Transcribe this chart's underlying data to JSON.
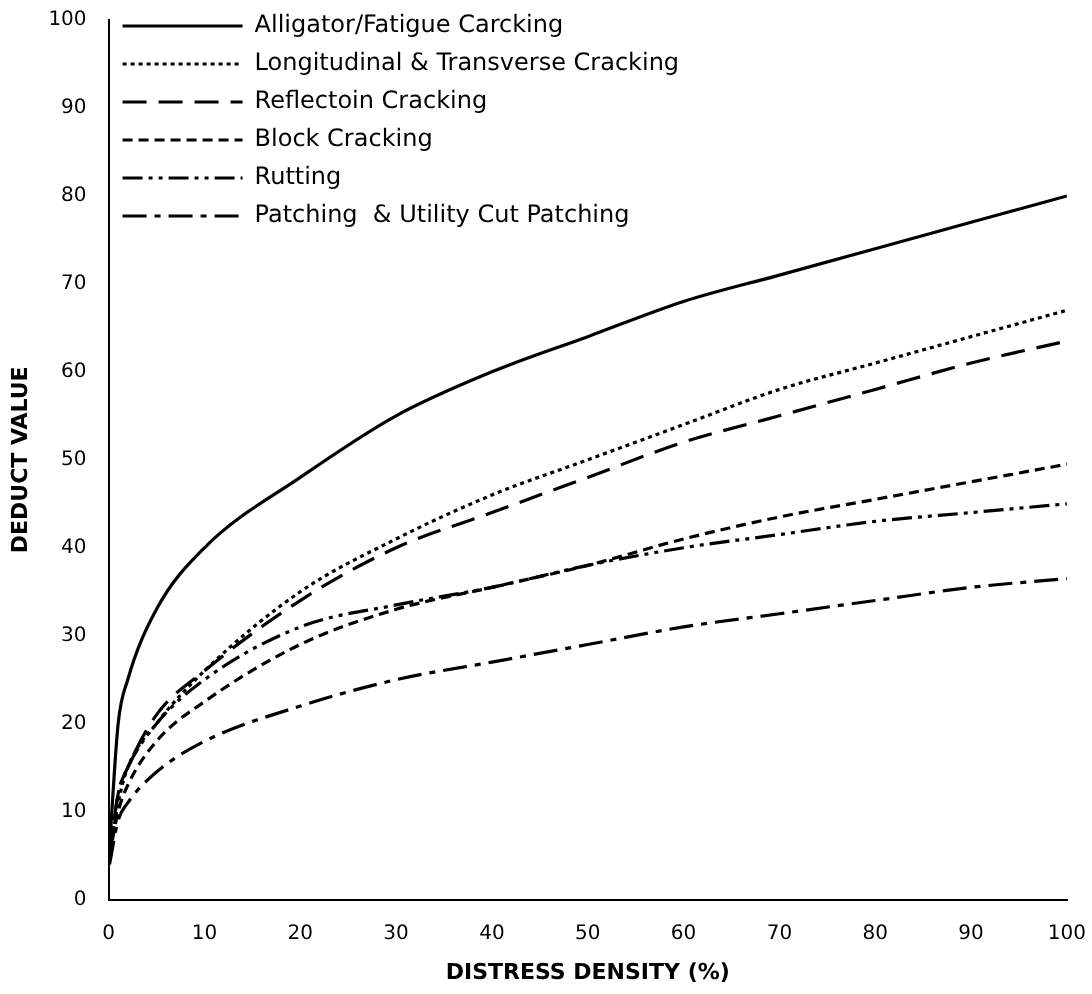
{
  "chart_data": {
    "type": "line",
    "xlabel": "DISTRESS DENSITY (%)",
    "ylabel": "DEDUCT VALUE",
    "x": [
      0.1,
      1,
      2,
      5,
      10,
      20,
      30,
      40,
      50,
      60,
      70,
      80,
      90,
      100
    ],
    "series": [
      {
        "name": "Alligator/Fatigue Carcking",
        "color": "#000000",
        "line_style": "solid",
        "values": [
          6,
          20,
          25,
          33,
          40,
          48,
          55,
          60,
          64,
          68,
          71,
          74,
          77,
          80
        ]
      },
      {
        "name": "Longitudinal & Transverse Cracking",
        "color": "#000000",
        "line_style": "dotted",
        "values": [
          5,
          11,
          15,
          20,
          26,
          35,
          41,
          46,
          50,
          54,
          58,
          61,
          64,
          67
        ]
      },
      {
        "name": "Reflectoin Cracking",
        "color": "#000000",
        "line_style": "dashed",
        "values": [
          5,
          12,
          15,
          21,
          26,
          34,
          40,
          44,
          48,
          52,
          55,
          58,
          61,
          63.5
        ]
      },
      {
        "name": "Block Cracking",
        "color": "#000000",
        "line_style": "dashed",
        "values": [
          5,
          10,
          13,
          18,
          22.5,
          29,
          33,
          35.5,
          38,
          41,
          43.5,
          45.5,
          47.5,
          49.5
        ]
      },
      {
        "name": "Rutting",
        "color": "#000000",
        "line_style": "dashed",
        "values": [
          5,
          12,
          15,
          20,
          25,
          31,
          33.5,
          35.5,
          38,
          40,
          41.5,
          43,
          44,
          45
        ]
      },
      {
        "name": "Patching  & Utility Cut Patching",
        "color": "#000000",
        "line_style": "dashed",
        "values": [
          4,
          9,
          11,
          14.5,
          18,
          22,
          25,
          27,
          29,
          31,
          32.5,
          34,
          35.5,
          36.5
        ]
      }
    ],
    "xlim": [
      0,
      100
    ],
    "xticks": [
      0,
      10,
      20,
      30,
      40,
      50,
      60,
      70,
      80,
      90,
      100
    ],
    "ylim": [
      0,
      100
    ],
    "yticks": [
      0,
      10,
      20,
      30,
      40,
      50,
      60,
      70,
      80,
      90,
      100
    ],
    "grid": false,
    "legend": "top left",
    "marker": "none"
  }
}
